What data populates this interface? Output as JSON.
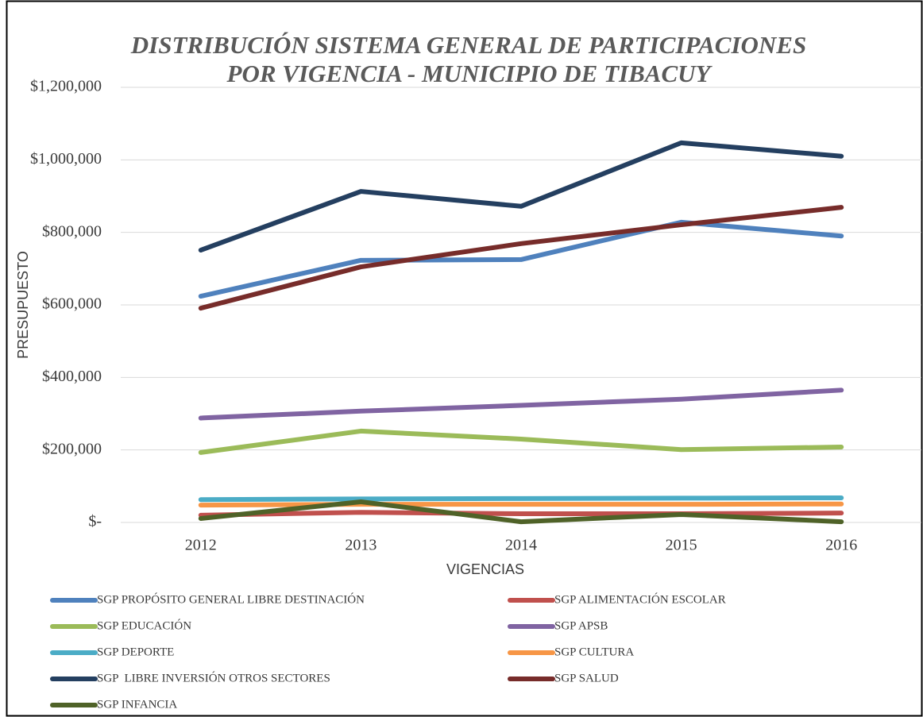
{
  "chart_data": {
    "type": "line",
    "title": [
      "DISTRIBUCIÓN SISTEMA GENERAL DE PARTICIPACIONES",
      "POR VIGENCIA - MUNICIPIO DE TIBACUY"
    ],
    "xlabel": "VIGENCIAS",
    "ylabel": "PRESUPUESTO",
    "categories": [
      "2012",
      "2013",
      "2014",
      "2015",
      "2016"
    ],
    "ylim": [
      0,
      1200000
    ],
    "yticks": [
      {
        "value": 0,
        "label": "$-"
      },
      {
        "value": 200000,
        "label": "$200,000"
      },
      {
        "value": 400000,
        "label": "$400,000"
      },
      {
        "value": 600000,
        "label": "$600,000"
      },
      {
        "value": 800000,
        "label": "$800,000"
      },
      {
        "value": 1000000,
        "label": "$1,000,000"
      },
      {
        "value": 1200000,
        "label": "$1,200,000"
      }
    ],
    "grid": true,
    "legend": "bottom",
    "series": [
      {
        "name": "SGP PROPÓSITO GENERAL LIBRE DESTINACIÓN",
        "color": "#4f81bd",
        "values": [
          624000,
          723000,
          725000,
          828000,
          790000
        ]
      },
      {
        "name": "SGP ALIMENTACIÓN ESCOLAR",
        "color": "#c0504d",
        "values": [
          20000,
          28000,
          24000,
          24000,
          26000
        ]
      },
      {
        "name": "SGP EDUCACIÓN",
        "color": "#9bbb59",
        "values": [
          193000,
          252000,
          230000,
          201000,
          208000
        ]
      },
      {
        "name": "SGP APSB",
        "color": "#8064a2",
        "values": [
          288000,
          307000,
          323000,
          340000,
          365000
        ]
      },
      {
        "name": "SGP DEPORTE",
        "color": "#4bacc6",
        "values": [
          63000,
          65000,
          66000,
          67000,
          68000
        ]
      },
      {
        "name": "SGP CULTURA",
        "color": "#f79646",
        "values": [
          48000,
          50000,
          50000,
          50000,
          51000
        ]
      },
      {
        "name": "SGP  LIBRE INVERSIÓN OTROS SECTORES",
        "color": "#243f60",
        "values": [
          751000,
          913000,
          872000,
          1047000,
          1010000
        ]
      },
      {
        "name": "SGP SALUD",
        "color": "#772c2a",
        "values": [
          591000,
          705000,
          769000,
          821000,
          869000
        ]
      },
      {
        "name": "SGP INFANCIA",
        "color": "#4f6228",
        "values": [
          11000,
          57000,
          2000,
          22000,
          2000
        ]
      }
    ]
  }
}
